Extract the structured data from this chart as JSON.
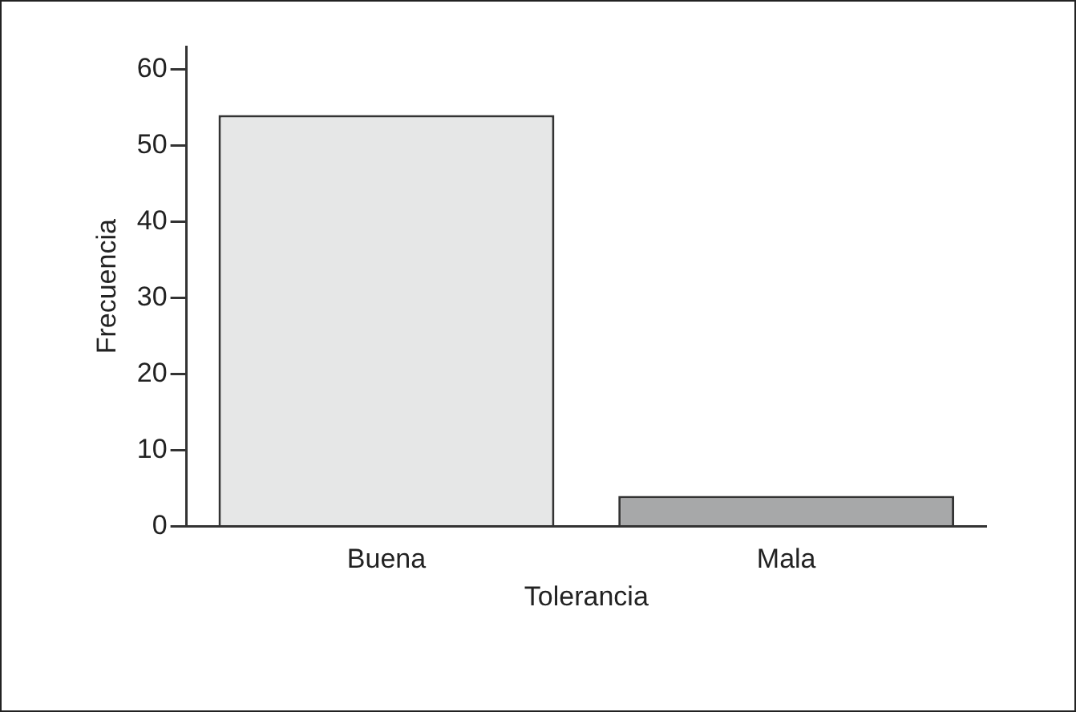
{
  "chart_data": {
    "type": "bar",
    "xlabel": "Tolerancia",
    "ylabel": "Frecuencia",
    "categories": [
      "Buena",
      "Mala"
    ],
    "values": [
      54,
      4
    ],
    "colors": [
      "#e6e7e7",
      "#a7a8a9"
    ],
    "ylim": [
      0,
      63
    ],
    "yticks": [
      0,
      10,
      20,
      30,
      40,
      50,
      60
    ],
    "grid": false,
    "legend": false
  }
}
